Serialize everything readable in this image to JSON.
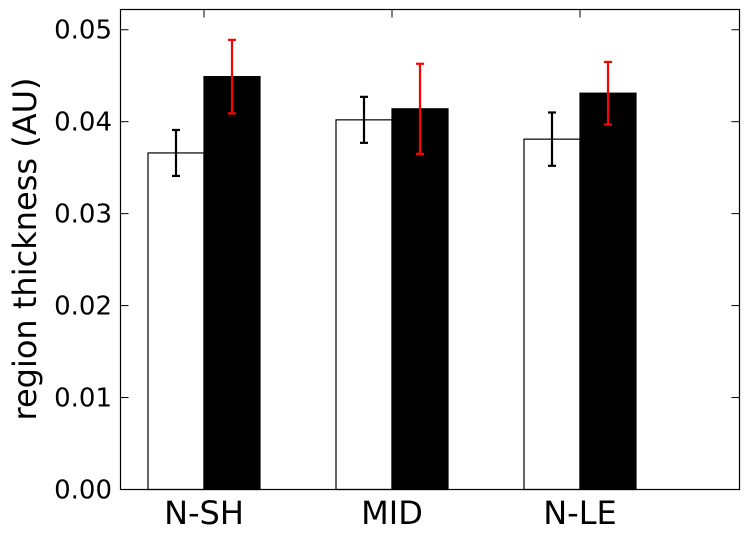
{
  "chart_data": {
    "type": "bar",
    "categories": [
      "N-SH",
      "MID",
      "N-LE"
    ],
    "series": [
      {
        "fill": "#ffffff",
        "errorbar_color": "#000000",
        "values": [
          0.0366,
          0.0402,
          0.0381
        ],
        "errors": [
          0.0025,
          0.0025,
          0.0029
        ]
      },
      {
        "fill": "#000000",
        "errorbar_color": "#ff0000",
        "values": [
          0.0449,
          0.0414,
          0.0431
        ],
        "errors": [
          0.004,
          0.0049,
          0.0034
        ]
      }
    ],
    "title": "",
    "xlabel": "",
    "ylabel": "region thickness (AU)",
    "ylim": [
      0,
      0.0522
    ],
    "yticks": [
      "0.00",
      "0.01",
      "0.02",
      "0.03",
      "0.04",
      "0.05"
    ],
    "ytick_values": [
      0.0,
      0.01,
      0.02,
      0.03,
      0.04,
      0.05
    ],
    "grid": false,
    "legend": "none"
  }
}
